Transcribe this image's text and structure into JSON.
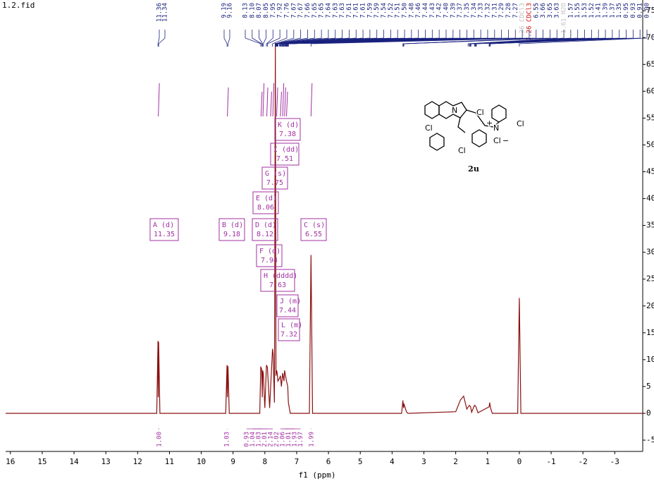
{
  "chart_data": {
    "type": "line",
    "title": "1.2.fid",
    "x_label": "f1 (ppm)",
    "xlim": [
      16.15,
      -3.88
    ],
    "ylim": [
      -7.1,
      77
    ],
    "xticks": [
      16,
      15,
      14,
      13,
      12,
      11,
      10,
      9,
      8,
      7,
      6,
      5,
      4,
      3,
      2,
      1,
      0,
      -1,
      -2,
      -3
    ],
    "yticks": [
      -5,
      0,
      5,
      10,
      15,
      20,
      25,
      30,
      35,
      40,
      45,
      50,
      55,
      60,
      65,
      70,
      75
    ],
    "grid": true,
    "series": [
      {
        "name": "spectrum",
        "color": "#8b1010",
        "x": [
          16.15,
          11.4,
          11.36,
          11.35,
          11.34,
          11.3,
          9.23,
          9.19,
          9.18,
          9.16,
          9.12,
          8.16,
          8.13,
          8.1,
          8.08,
          8.07,
          8.05,
          8,
          7.95,
          7.92,
          7.85,
          7.76,
          7.74,
          7.7,
          7.67,
          7.65,
          7.63,
          7.61,
          7.59,
          7.54,
          7.51,
          7.48,
          7.44,
          7.4,
          7.38,
          7.35,
          7.32,
          7.28,
          7.26,
          7.2,
          6.6,
          6.55,
          6.5,
          3.7,
          3.66,
          3.64,
          3.63,
          3.55,
          3.5,
          2,
          1.85,
          1.75,
          1.65,
          1.57,
          1.53,
          1.5,
          1.41,
          1.37,
          1.3,
          0.95,
          0.93,
          0.91,
          0.85,
          0.05,
          0,
          -0.05,
          -3.88
        ],
        "values": [
          0,
          0,
          13.5,
          3,
          13.3,
          0,
          0,
          9,
          3,
          8.8,
          0,
          0,
          8.7,
          8.2,
          3,
          8,
          7.5,
          1,
          9,
          8.6,
          1,
          12,
          11,
          2,
          69,
          7,
          8,
          7.5,
          6,
          6.5,
          7,
          5,
          7.5,
          6,
          8,
          7,
          6,
          5,
          2,
          0,
          0,
          29.5,
          0,
          0,
          2.4,
          1,
          1.8,
          0.3,
          0,
          0.3,
          2.5,
          3.2,
          0.8,
          1.5,
          1.2,
          0.2,
          1.5,
          1.3,
          0.1,
          1.2,
          2,
          1.1,
          0,
          0,
          21.5,
          0,
          0
        ]
      }
    ],
    "peak_labels": [
      {
        "value": 11.36,
        "label": "11.36"
      },
      {
        "value": 11.34,
        "label": "11.34"
      },
      {
        "value": 9.19,
        "label": "9.19"
      },
      {
        "value": 9.16,
        "label": "9.16"
      },
      {
        "value": 8.13,
        "label": "8.13"
      },
      {
        "value": 8.1,
        "label": "8.10"
      },
      {
        "value": 8.07,
        "label": "8.07"
      },
      {
        "value": 8.05,
        "label": "8.05"
      },
      {
        "value": 7.95,
        "label": "7.95"
      },
      {
        "value": 7.92,
        "label": "7.92"
      },
      {
        "value": 7.76,
        "label": "7.76"
      },
      {
        "value": 7.67,
        "label": "7.67"
      },
      {
        "value": 7.67,
        "label": "7.67"
      },
      {
        "value": 7.66,
        "label": "7.66"
      },
      {
        "value": 7.65,
        "label": "7.65"
      },
      {
        "value": 7.65,
        "label": "7.65"
      },
      {
        "value": 7.64,
        "label": "7.64"
      },
      {
        "value": 7.63,
        "label": "7.63"
      },
      {
        "value": 7.63,
        "label": "7.63"
      },
      {
        "value": 7.61,
        "label": "7.61"
      },
      {
        "value": 7.61,
        "label": "7.61"
      },
      {
        "value": 7.61,
        "label": "7.61"
      },
      {
        "value": 7.59,
        "label": "7.59"
      },
      {
        "value": 7.59,
        "label": "7.59"
      },
      {
        "value": 7.54,
        "label": "7.54"
      },
      {
        "value": 7.52,
        "label": "7.52"
      },
      {
        "value": 7.51,
        "label": "7.51"
      },
      {
        "value": 7.5,
        "label": "7.50"
      },
      {
        "value": 7.48,
        "label": "7.48"
      },
      {
        "value": 7.46,
        "label": "7.46"
      },
      {
        "value": 7.44,
        "label": "7.44"
      },
      {
        "value": 7.43,
        "label": "7.43"
      },
      {
        "value": 7.42,
        "label": "7.42"
      },
      {
        "value": 7.4,
        "label": "7.40"
      },
      {
        "value": 7.39,
        "label": "7.39"
      },
      {
        "value": 7.37,
        "label": "7.37"
      },
      {
        "value": 7.35,
        "label": "7.35"
      },
      {
        "value": 7.34,
        "label": "7.34"
      },
      {
        "value": 7.33,
        "label": "7.33"
      },
      {
        "value": 7.32,
        "label": "7.32"
      },
      {
        "value": 7.31,
        "label": "7.31"
      },
      {
        "value": 7.29,
        "label": "7.29"
      },
      {
        "value": 7.28,
        "label": "7.28"
      },
      {
        "value": 7.27,
        "label": "7.27"
      },
      {
        "value": 7.26,
        "label": "7.26 CDCl3"
      },
      {
        "value": 7.26,
        "label": "7.26 CDCl3"
      },
      {
        "value": 6.55,
        "label": "6.55"
      },
      {
        "value": 3.66,
        "label": "3.66"
      },
      {
        "value": 3.65,
        "label": "3.65"
      },
      {
        "value": 3.63,
        "label": "3.63"
      },
      {
        "value": 1.61,
        "label": "1.61 H2O"
      },
      {
        "value": 1.57,
        "label": "1.57"
      },
      {
        "value": 1.55,
        "label": "1.55"
      },
      {
        "value": 1.53,
        "label": "1.53"
      },
      {
        "value": 1.52,
        "label": "1.52"
      },
      {
        "value": 1.41,
        "label": "1.41"
      },
      {
        "value": 1.39,
        "label": "1.39"
      },
      {
        "value": 1.37,
        "label": "1.37"
      },
      {
        "value": 1.35,
        "label": "1.35"
      },
      {
        "value": 0.95,
        "label": "0.95"
      },
      {
        "value": 0.93,
        "label": "0.93"
      },
      {
        "value": 0.91,
        "label": "0.91"
      },
      {
        "value": 0,
        "label": "0.00"
      }
    ],
    "multiplets": [
      {
        "label": "A (d)",
        "shift": "11.35"
      },
      {
        "label": "B (d)",
        "shift": "9.18"
      },
      {
        "label": "D (d)",
        "shift": "8.12"
      },
      {
        "label": "C (s)",
        "shift": "6.55"
      },
      {
        "label": "E (d)",
        "shift": "8.06"
      },
      {
        "label": "G (s)",
        "shift": "7.75"
      },
      {
        "label": "I (dd)",
        "shift": "7.51"
      },
      {
        "label": "K (d)",
        "shift": "7.38"
      },
      {
        "label": "F (d)",
        "shift": "7.94"
      },
      {
        "label": "H (dddd)",
        "shift": "7.63"
      },
      {
        "label": "J (m)",
        "shift": "7.44"
      },
      {
        "label": "L (m)",
        "shift": "7.32"
      }
    ],
    "integrals": [
      {
        "value": 11.35,
        "label": "1.00"
      },
      {
        "value": 9.18,
        "label": "1.03"
      },
      {
        "value": 8.12,
        "label": "0.93"
      },
      {
        "value": 8.06,
        "label": "1.04"
      },
      {
        "value": 7.94,
        "label": "1.03"
      },
      {
        "value": 7.82,
        "label": "2.01"
      },
      {
        "value": 7.75,
        "label": "2.14"
      },
      {
        "value": 7.63,
        "label": "2.02"
      },
      {
        "value": 7.51,
        "label": "1.06"
      },
      {
        "value": 7.44,
        "label": "1.01"
      },
      {
        "value": 7.38,
        "label": "1.93"
      },
      {
        "value": 7.32,
        "label": "1.97"
      },
      {
        "value": 6.55,
        "label": "1.99"
      }
    ],
    "structure": {
      "atoms": [
        "N",
        "Cl",
        "Cl",
        "Cl",
        "N",
        "+",
        "Cl",
        "Cl",
        "−"
      ],
      "compound": "2u"
    }
  }
}
